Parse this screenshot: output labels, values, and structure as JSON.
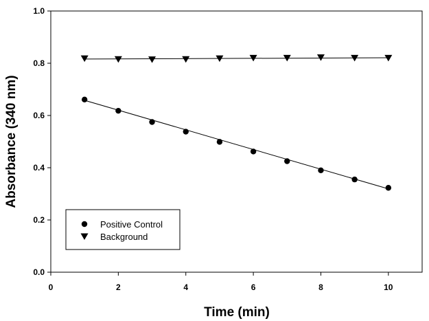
{
  "chart_data": {
    "type": "scatter",
    "title": "",
    "xlabel": "Time (min)",
    "ylabel": "Absorbance (340 nm)",
    "xlim": [
      0,
      11
    ],
    "ylim": [
      0,
      1.0
    ],
    "x_ticks": [
      0,
      2,
      4,
      6,
      8,
      10
    ],
    "y_ticks": [
      0.0,
      0.2,
      0.4,
      0.6,
      0.8,
      1.0
    ],
    "x_tick_labels": [
      "0",
      "2",
      "4",
      "6",
      "8",
      "10"
    ],
    "y_tick_labels": [
      "0.0",
      "0.2",
      "0.4",
      "0.6",
      "0.8",
      "1.0"
    ],
    "grid": false,
    "legend_position": "bottom-left",
    "series": [
      {
        "name": "Positive Control",
        "marker": "circle",
        "color": "#000000",
        "x": [
          1,
          2,
          3,
          4,
          5,
          6,
          7,
          8,
          9,
          10
        ],
        "y": [
          0.661,
          0.618,
          0.575,
          0.538,
          0.499,
          0.462,
          0.425,
          0.39,
          0.355,
          0.323
        ],
        "fit": [
          0.658,
          0.319
        ]
      },
      {
        "name": "Background",
        "marker": "triangle-down",
        "color": "#000000",
        "x": [
          1,
          2,
          3,
          4,
          5,
          6,
          7,
          8,
          9,
          10
        ],
        "y": [
          0.818,
          0.815,
          0.814,
          0.815,
          0.818,
          0.82,
          0.82,
          0.822,
          0.82,
          0.82
        ],
        "fit": [
          0.816,
          0.821
        ]
      }
    ]
  }
}
